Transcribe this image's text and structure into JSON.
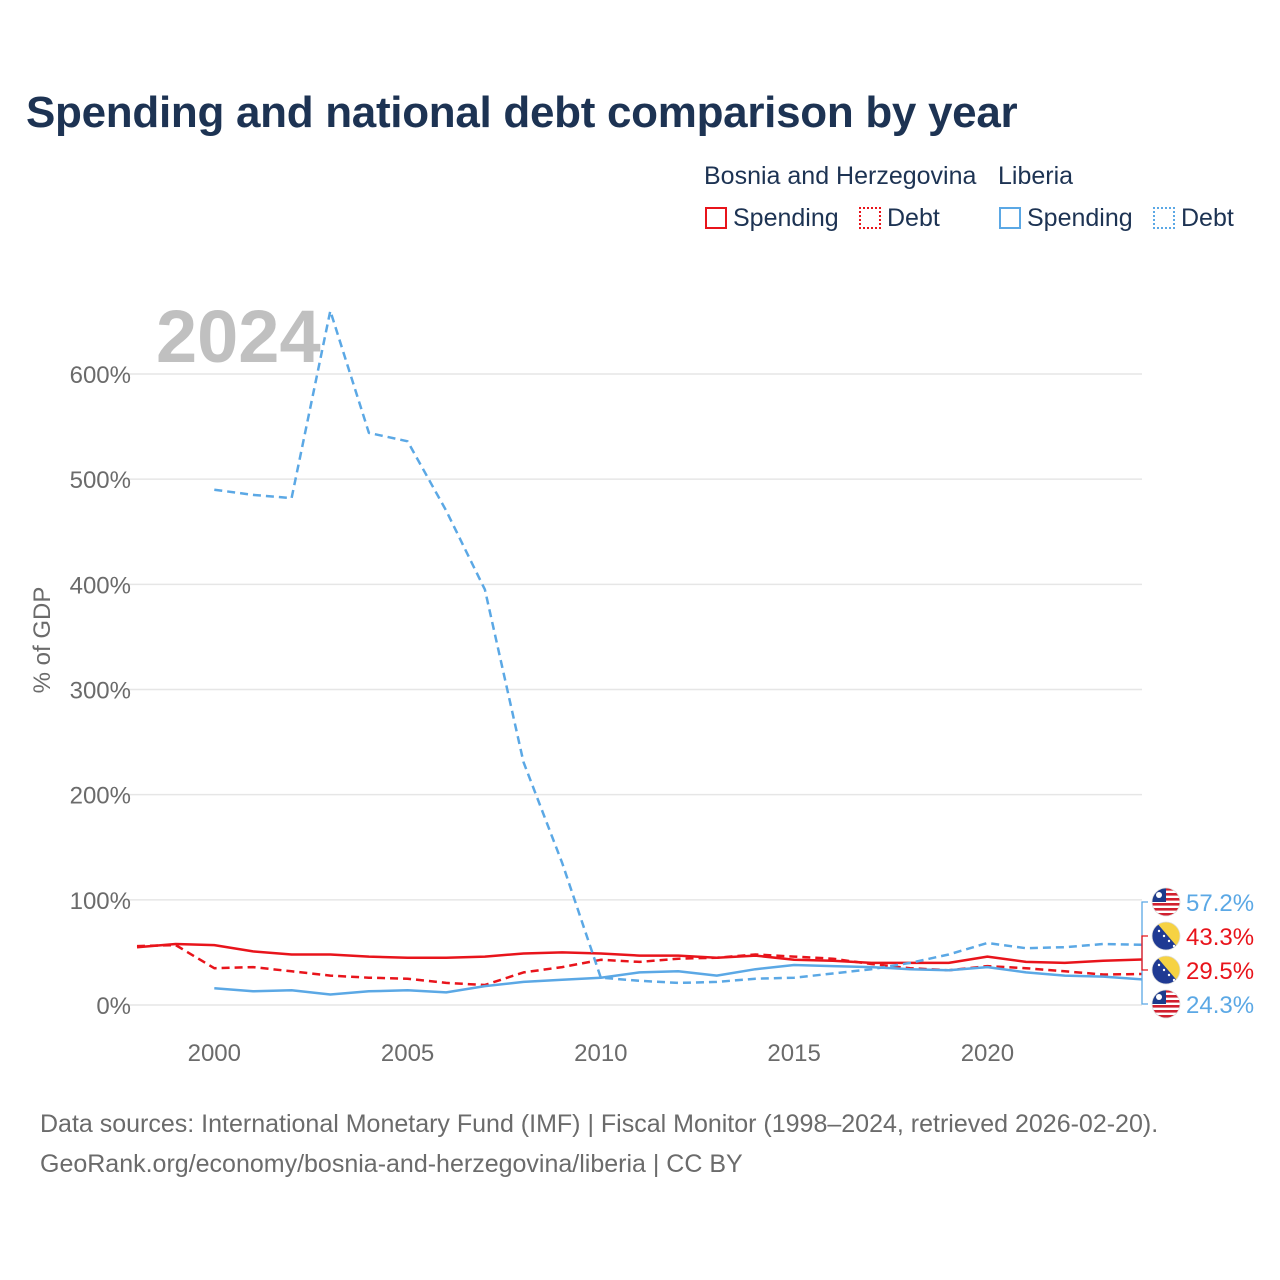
{
  "title": "Spending and national debt comparison by year",
  "legend": {
    "groups": [
      {
        "name": "Bosnia and Herzegovina",
        "spending_label": "Spending",
        "debt_label": "Debt",
        "color": "#e8141b"
      },
      {
        "name": "Liberia",
        "spending_label": "Spending",
        "debt_label": "Debt",
        "color": "#5ba8e5"
      }
    ]
  },
  "footer": {
    "line1": "Data sources: International Monetary Fund (IMF) | Fiscal Monitor (1998–2024, retrieved 2026-02-20).",
    "line2": "GeoRank.org/economy/bosnia-and-herzegovina/liberia | CC BY"
  },
  "chart_data": {
    "type": "line",
    "title": "Spending and national debt comparison by year",
    "year_label": "2024",
    "ylabel": "% of GDP",
    "xlabel": "",
    "xlim": [
      1998,
      2024
    ],
    "ylim": [
      0,
      600
    ],
    "xticks": [
      2000,
      2005,
      2010,
      2015,
      2020
    ],
    "yticks": [
      0,
      100,
      200,
      300,
      400,
      500,
      600
    ],
    "ytick_labels": [
      "0%",
      "100%",
      "200%",
      "300%",
      "400%",
      "500%",
      "600%"
    ],
    "grid": true,
    "legend_position": "top-right",
    "series": [
      {
        "name": "Bosnia and Herzegovina Spending",
        "color": "#e8141b",
        "dash": "solid",
        "x": [
          1998,
          1999,
          2000,
          2001,
          2002,
          2003,
          2004,
          2005,
          2006,
          2007,
          2008,
          2009,
          2010,
          2011,
          2012,
          2013,
          2014,
          2015,
          2016,
          2017,
          2018,
          2019,
          2020,
          2021,
          2022,
          2023,
          2024
        ],
        "values": [
          55,
          58,
          57,
          51,
          48,
          48,
          46,
          45,
          45,
          46,
          49,
          50,
          49,
          47,
          47,
          45,
          47,
          43,
          42,
          40,
          40,
          40,
          46,
          41,
          40,
          42,
          43.3
        ]
      },
      {
        "name": "Bosnia and Herzegovina Debt",
        "color": "#e8141b",
        "dash": "dashed",
        "x": [
          1998,
          1999,
          2000,
          2001,
          2002,
          2003,
          2004,
          2005,
          2006,
          2007,
          2008,
          2009,
          2010,
          2011,
          2012,
          2013,
          2014,
          2015,
          2016,
          2017,
          2018,
          2019,
          2020,
          2021,
          2022,
          2023,
          2024
        ],
        "values": [
          56,
          57,
          35,
          36,
          32,
          28,
          26,
          25,
          21,
          19,
          31,
          36,
          43,
          41,
          44,
          45,
          48,
          46,
          44,
          39,
          35,
          33,
          37,
          35,
          32,
          29,
          29.5
        ]
      },
      {
        "name": "Liberia Spending",
        "color": "#5ba8e5",
        "dash": "solid",
        "x": [
          2000,
          2001,
          2002,
          2003,
          2004,
          2005,
          2006,
          2007,
          2008,
          2009,
          2010,
          2011,
          2012,
          2013,
          2014,
          2015,
          2016,
          2017,
          2018,
          2019,
          2020,
          2021,
          2022,
          2023,
          2024
        ],
        "values": [
          16,
          13,
          14,
          10,
          13,
          14,
          12,
          18,
          22,
          24,
          26,
          31,
          32,
          28,
          34,
          38,
          37,
          36,
          34,
          33,
          36,
          31,
          28,
          27,
          24.3
        ]
      },
      {
        "name": "Liberia Debt",
        "color": "#5ba8e5",
        "dash": "dashed",
        "x": [
          2000,
          2001,
          2002,
          2003,
          2004,
          2005,
          2006,
          2007,
          2008,
          2009,
          2010,
          2011,
          2012,
          2013,
          2014,
          2015,
          2016,
          2017,
          2018,
          2019,
          2020,
          2021,
          2022,
          2023,
          2024
        ],
        "values": [
          490,
          485,
          482,
          660,
          544,
          536,
          470,
          395,
          231,
          135,
          26,
          23,
          21,
          22,
          25,
          26,
          30,
          34,
          40,
          48,
          59,
          54,
          55,
          58,
          57.2
        ]
      }
    ],
    "end_labels": [
      {
        "text": "57.2%",
        "country": "Liberia",
        "color": "#5ba8e5"
      },
      {
        "text": "43.3%",
        "country": "Bosnia and Herzegovina",
        "color": "#e8141b"
      },
      {
        "text": "29.5%",
        "country": "Bosnia and Herzegovina",
        "color": "#e8141b"
      },
      {
        "text": "24.3%",
        "country": "Liberia",
        "color": "#5ba8e5"
      }
    ]
  }
}
